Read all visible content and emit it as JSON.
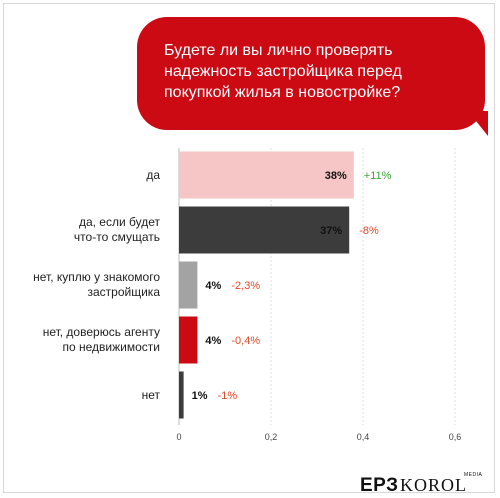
{
  "question": "Будете ли вы лично проверять\nнадежность застройщика перед\nпокупкой жилья в новостройке?",
  "chart_data": {
    "type": "bar",
    "orientation": "horizontal",
    "categories": [
      "да",
      "да, если будет\nчто-то смущать",
      "нет, куплю у знакомого\nзастройщика",
      "нет, доверюсь агенту\nпо недвижимости",
      "нет"
    ],
    "values": [
      0.38,
      0.37,
      0.04,
      0.04,
      0.01
    ],
    "value_labels": [
      "38%",
      "37%",
      "4%",
      "4%",
      "1%"
    ],
    "changes": [
      "+11%",
      "-8%",
      "-2,3%",
      "-0,4%",
      "-1%"
    ],
    "bar_colors": [
      "#f6c6c6",
      "#3c3c3c",
      "#a3a3a3",
      "#cc0a14",
      "#3c3c3c"
    ],
    "change_colors": [
      "#3aa53a",
      "#e04a2a",
      "#e04a2a",
      "#e04a2a",
      "#e04a2a"
    ],
    "x_ticks": [
      "0",
      "0,2",
      "0,4",
      "0,6"
    ],
    "xlim": [
      0,
      0.6
    ],
    "grid": true
  },
  "brand": {
    "ep3": "ЕРЗ",
    "korol": "KOROL",
    "media": "MEDIA"
  }
}
